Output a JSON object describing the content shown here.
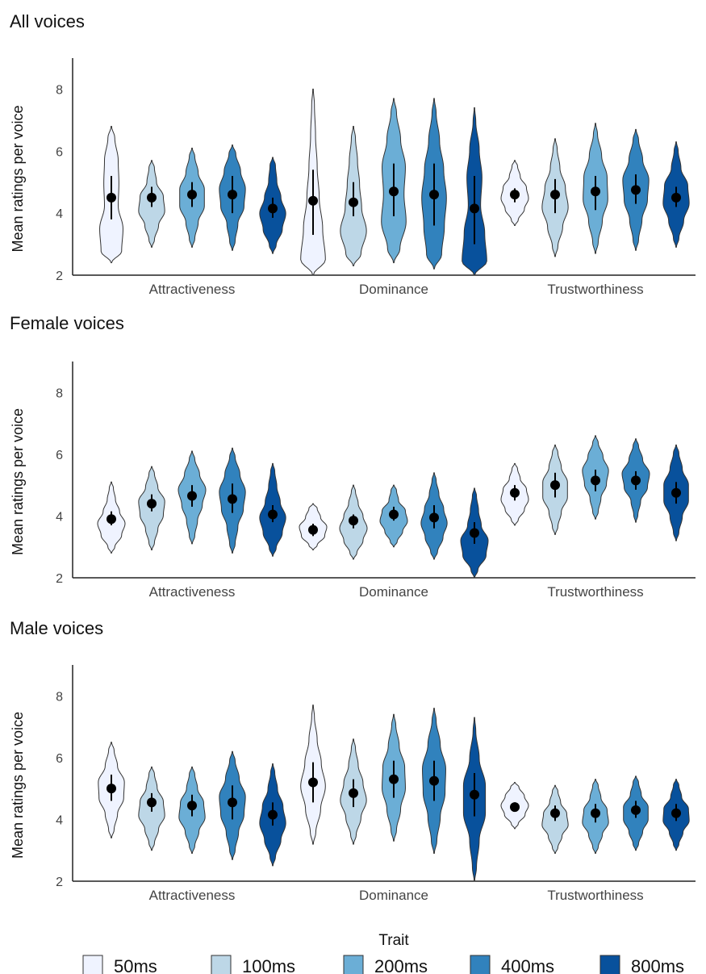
{
  "chart_data": [
    {
      "type": "violin",
      "title": "All voices",
      "ylabel": "Mean ratings per voice",
      "xlabel": "",
      "ylim": [
        2,
        9
      ],
      "yticks": [
        2,
        4,
        6,
        8
      ],
      "categories": [
        "Attractiveness",
        "Dominance",
        "Trustworthiness"
      ],
      "series_names": [
        "50ms",
        "100ms",
        "200ms",
        "400ms",
        "800ms"
      ],
      "groups": [
        [
          {
            "mean": 4.5,
            "ci": [
              3.8,
              5.2
            ],
            "min": 2.4,
            "max": 6.8,
            "shape": [
              0.75,
              0.85,
              0.5,
              0.55,
              0.5,
              0.25
            ]
          },
          {
            "mean": 4.5,
            "ci": [
              4.2,
              4.85
            ],
            "min": 2.9,
            "max": 5.7,
            "shape": [
              0.2,
              0.5,
              0.95,
              0.85,
              0.35,
              0.2
            ]
          },
          {
            "mean": 4.6,
            "ci": [
              4.2,
              5.0
            ],
            "min": 2.9,
            "max": 6.1,
            "shape": [
              0.2,
              0.45,
              0.9,
              0.9,
              0.45,
              0.2
            ]
          },
          {
            "mean": 4.6,
            "ci": [
              4.0,
              5.2
            ],
            "min": 2.8,
            "max": 6.2,
            "shape": [
              0.2,
              0.4,
              0.85,
              0.95,
              0.6,
              0.25
            ]
          },
          {
            "mean": 4.15,
            "ci": [
              3.85,
              4.5
            ],
            "min": 2.7,
            "max": 5.8,
            "shape": [
              0.25,
              0.7,
              0.95,
              0.6,
              0.3,
              0.2
            ]
          }
        ],
        [
          {
            "mean": 4.4,
            "ci": [
              3.3,
              5.4
            ],
            "min": 2.0,
            "max": 8.0,
            "shape": [
              0.9,
              0.7,
              0.45,
              0.3,
              0.18,
              0.1
            ]
          },
          {
            "mean": 4.35,
            "ci": [
              3.9,
              5.0
            ],
            "min": 2.3,
            "max": 6.8,
            "shape": [
              0.55,
              0.95,
              0.6,
              0.45,
              0.3,
              0.15
            ]
          },
          {
            "mean": 4.7,
            "ci": [
              3.9,
              5.6
            ],
            "min": 2.4,
            "max": 7.7,
            "shape": [
              0.45,
              0.9,
              0.75,
              0.85,
              0.5,
              0.2
            ]
          },
          {
            "mean": 4.6,
            "ci": [
              3.6,
              5.6
            ],
            "min": 2.2,
            "max": 7.7,
            "shape": [
              0.55,
              0.75,
              0.9,
              0.7,
              0.4,
              0.15
            ]
          },
          {
            "mean": 4.15,
            "ci": [
              3.0,
              5.2
            ],
            "min": 2.0,
            "max": 7.4,
            "shape": [
              0.9,
              0.75,
              0.45,
              0.55,
              0.35,
              0.1
            ]
          }
        ],
        [
          {
            "mean": 4.6,
            "ci": [
              4.35,
              4.8
            ],
            "min": 3.6,
            "max": 5.7,
            "shape": [
              0.25,
              0.7,
              1.0,
              0.85,
              0.4,
              0.2
            ]
          },
          {
            "mean": 4.6,
            "ci": [
              4.0,
              5.1
            ],
            "min": 2.6,
            "max": 6.4,
            "shape": [
              0.2,
              0.55,
              0.95,
              0.75,
              0.35,
              0.15
            ]
          },
          {
            "mean": 4.7,
            "ci": [
              4.1,
              5.2
            ],
            "min": 2.7,
            "max": 6.9,
            "shape": [
              0.2,
              0.5,
              0.9,
              0.85,
              0.45,
              0.15
            ]
          },
          {
            "mean": 4.75,
            "ci": [
              4.3,
              5.25
            ],
            "min": 2.8,
            "max": 6.7,
            "shape": [
              0.2,
              0.45,
              0.85,
              0.95,
              0.5,
              0.2
            ]
          },
          {
            "mean": 4.5,
            "ci": [
              4.2,
              4.85
            ],
            "min": 2.9,
            "max": 6.3,
            "shape": [
              0.2,
              0.55,
              0.95,
              0.85,
              0.35,
              0.15
            ]
          }
        ]
      ]
    },
    {
      "type": "violin",
      "title": "Female voices",
      "ylabel": "Mean ratings per voice",
      "xlabel": "",
      "ylim": [
        2,
        9
      ],
      "yticks": [
        2,
        4,
        6,
        8
      ],
      "categories": [
        "Attractiveness",
        "Dominance",
        "Trustworthiness"
      ],
      "series_names": [
        "50ms",
        "100ms",
        "200ms",
        "400ms",
        "800ms"
      ],
      "groups": [
        [
          {
            "mean": 3.9,
            "ci": [
              3.7,
              4.15
            ],
            "min": 2.8,
            "max": 5.1,
            "shape": [
              0.25,
              0.75,
              1.0,
              0.6,
              0.3,
              0.15
            ]
          },
          {
            "mean": 4.4,
            "ci": [
              4.15,
              4.7
            ],
            "min": 2.9,
            "max": 5.6,
            "shape": [
              0.2,
              0.45,
              0.85,
              0.95,
              0.45,
              0.2
            ]
          },
          {
            "mean": 4.65,
            "ci": [
              4.3,
              5.0
            ],
            "min": 3.1,
            "max": 6.1,
            "shape": [
              0.2,
              0.4,
              0.75,
              1.0,
              0.55,
              0.2
            ]
          },
          {
            "mean": 4.55,
            "ci": [
              4.1,
              5.05
            ],
            "min": 2.8,
            "max": 6.2,
            "shape": [
              0.2,
              0.4,
              0.8,
              0.95,
              0.55,
              0.2
            ]
          },
          {
            "mean": 4.05,
            "ci": [
              3.8,
              4.35
            ],
            "min": 2.7,
            "max": 5.7,
            "shape": [
              0.25,
              0.7,
              0.95,
              0.55,
              0.3,
              0.15
            ]
          }
        ],
        [
          {
            "mean": 3.55,
            "ci": [
              3.35,
              3.75
            ],
            "min": 2.9,
            "max": 4.4,
            "shape": [
              0.3,
              0.85,
              1.0,
              0.55,
              0.3
            ]
          },
          {
            "mean": 3.85,
            "ci": [
              3.6,
              4.05
            ],
            "min": 2.6,
            "max": 5.0,
            "shape": [
              0.25,
              0.7,
              1.0,
              0.7,
              0.35,
              0.15
            ]
          },
          {
            "mean": 4.05,
            "ci": [
              3.85,
              4.3
            ],
            "min": 3.0,
            "max": 5.0,
            "shape": [
              0.25,
              0.65,
              1.0,
              0.85,
              0.35,
              0.2
            ]
          },
          {
            "mean": 3.95,
            "ci": [
              3.6,
              4.35
            ],
            "min": 2.6,
            "max": 5.4,
            "shape": [
              0.25,
              0.65,
              0.95,
              0.7,
              0.35,
              0.15
            ]
          },
          {
            "mean": 3.45,
            "ci": [
              3.1,
              3.8
            ],
            "min": 2.0,
            "max": 4.9,
            "shape": [
              0.25,
              0.85,
              1.0,
              0.5,
              0.3,
              0.15
            ]
          }
        ],
        [
          {
            "mean": 4.75,
            "ci": [
              4.5,
              5.0
            ],
            "min": 3.7,
            "max": 5.7,
            "shape": [
              0.25,
              0.7,
              1.0,
              0.85,
              0.4,
              0.2
            ]
          },
          {
            "mean": 5.0,
            "ci": [
              4.6,
              5.4
            ],
            "min": 3.4,
            "max": 6.3,
            "shape": [
              0.2,
              0.45,
              0.9,
              0.9,
              0.45,
              0.2
            ]
          },
          {
            "mean": 5.15,
            "ci": [
              4.8,
              5.5
            ],
            "min": 3.9,
            "max": 6.6,
            "shape": [
              0.2,
              0.4,
              0.8,
              0.95,
              0.55,
              0.2
            ]
          },
          {
            "mean": 5.15,
            "ci": [
              4.85,
              5.45
            ],
            "min": 3.8,
            "max": 6.5,
            "shape": [
              0.15,
              0.35,
              0.85,
              1.0,
              0.5,
              0.2
            ]
          },
          {
            "mean": 4.75,
            "ci": [
              4.4,
              5.1
            ],
            "min": 3.2,
            "max": 6.3,
            "shape": [
              0.2,
              0.45,
              0.9,
              0.9,
              0.45,
              0.2
            ]
          }
        ]
      ]
    },
    {
      "type": "violin",
      "title": "Male voices",
      "ylabel": "Mean ratings per voice",
      "xlabel": "",
      "ylim": [
        2,
        9
      ],
      "yticks": [
        2,
        4,
        6,
        8
      ],
      "categories": [
        "Attractiveness",
        "Dominance",
        "Trustworthiness"
      ],
      "series_names": [
        "50ms",
        "100ms",
        "200ms",
        "400ms",
        "800ms"
      ],
      "groups": [
        [
          {
            "mean": 5.0,
            "ci": [
              4.6,
              5.45
            ],
            "min": 3.4,
            "max": 6.5,
            "shape": [
              0.2,
              0.45,
              0.9,
              0.95,
              0.45,
              0.2
            ]
          },
          {
            "mean": 4.55,
            "ci": [
              4.25,
              4.85
            ],
            "min": 3.0,
            "max": 5.7,
            "shape": [
              0.2,
              0.5,
              0.95,
              0.85,
              0.4,
              0.2
            ]
          },
          {
            "mean": 4.45,
            "ci": [
              4.1,
              4.8
            ],
            "min": 2.9,
            "max": 5.7,
            "shape": [
              0.2,
              0.5,
              0.95,
              0.85,
              0.4,
              0.2
            ]
          },
          {
            "mean": 4.55,
            "ci": [
              4.0,
              5.1
            ],
            "min": 2.7,
            "max": 6.2,
            "shape": [
              0.2,
              0.45,
              0.85,
              0.95,
              0.5,
              0.2
            ]
          },
          {
            "mean": 4.15,
            "ci": [
              3.8,
              4.55
            ],
            "min": 2.5,
            "max": 5.8,
            "shape": [
              0.2,
              0.6,
              0.95,
              0.75,
              0.35,
              0.15
            ]
          }
        ],
        [
          {
            "mean": 5.2,
            "ci": [
              4.55,
              5.85
            ],
            "min": 3.2,
            "max": 7.7,
            "shape": [
              0.2,
              0.55,
              0.9,
              0.6,
              0.3,
              0.1
            ]
          },
          {
            "mean": 4.85,
            "ci": [
              4.4,
              5.3
            ],
            "min": 3.2,
            "max": 6.6,
            "shape": [
              0.2,
              0.55,
              0.95,
              0.7,
              0.35,
              0.15
            ]
          },
          {
            "mean": 5.3,
            "ci": [
              4.7,
              5.9
            ],
            "min": 3.3,
            "max": 7.4,
            "shape": [
              0.2,
              0.5,
              0.85,
              0.8,
              0.4,
              0.15
            ]
          },
          {
            "mean": 5.25,
            "ci": [
              4.6,
              5.9
            ],
            "min": 2.9,
            "max": 7.6,
            "shape": [
              0.2,
              0.45,
              0.8,
              0.85,
              0.45,
              0.15
            ]
          },
          {
            "mean": 4.8,
            "ci": [
              4.1,
              5.5
            ],
            "min": 2.0,
            "max": 7.3,
            "shape": [
              0.15,
              0.35,
              0.8,
              0.8,
              0.35,
              0.1
            ]
          }
        ],
        [
          {
            "mean": 4.4,
            "ci": [
              4.25,
              4.55
            ],
            "min": 3.7,
            "max": 5.2,
            "shape": [
              0.25,
              0.75,
              1.0,
              0.7,
              0.3
            ]
          },
          {
            "mean": 4.2,
            "ci": [
              3.95,
              4.45
            ],
            "min": 2.9,
            "max": 5.1,
            "shape": [
              0.2,
              0.5,
              0.95,
              0.85,
              0.4,
              0.2
            ]
          },
          {
            "mean": 4.2,
            "ci": [
              3.9,
              4.5
            ],
            "min": 2.9,
            "max": 5.3,
            "shape": [
              0.2,
              0.5,
              0.95,
              0.85,
              0.4,
              0.2
            ]
          },
          {
            "mean": 4.3,
            "ci": [
              4.05,
              4.6
            ],
            "min": 3.0,
            "max": 5.4,
            "shape": [
              0.2,
              0.5,
              0.9,
              0.9,
              0.4,
              0.2
            ]
          },
          {
            "mean": 4.2,
            "ci": [
              3.95,
              4.5
            ],
            "min": 3.0,
            "max": 5.3,
            "shape": [
              0.2,
              0.5,
              0.95,
              0.9,
              0.4,
              0.2
            ]
          }
        ]
      ]
    }
  ],
  "legend": {
    "title": "Trait",
    "placement": "bottom",
    "entries": [
      {
        "label": "50ms",
        "color": "#eff3ff"
      },
      {
        "label": "100ms",
        "color": "#bdd7e7"
      },
      {
        "label": "200ms",
        "color": "#6baed6"
      },
      {
        "label": "400ms",
        "color": "#3182bd"
      },
      {
        "label": "800ms",
        "color": "#08519c"
      }
    ]
  }
}
